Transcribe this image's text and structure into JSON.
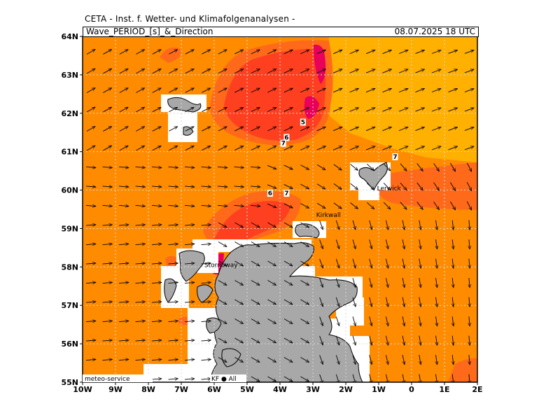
{
  "header": {
    "title": "CETA - Inst. f. Wetter- und Klimafolgenanalysen -",
    "subtitle": "Wave_PERIOD_[s]_&_Direction",
    "datetime": "08.07.2025  18 UTC"
  },
  "map": {
    "lon_range": [
      -10,
      2
    ],
    "lat_range": [
      55,
      64
    ],
    "x_ticks": [
      {
        "lon": -10,
        "label": "10W"
      },
      {
        "lon": -9,
        "label": "9W"
      },
      {
        "lon": -8,
        "label": "8W"
      },
      {
        "lon": -7,
        "label": "7W"
      },
      {
        "lon": -6,
        "label": "6W"
      },
      {
        "lon": -5,
        "label": "5W"
      },
      {
        "lon": -4,
        "label": "4W"
      },
      {
        "lon": -3,
        "label": "3W"
      },
      {
        "lon": -2,
        "label": "2W"
      },
      {
        "lon": -1,
        "label": "1W"
      },
      {
        "lon": 0,
        "label": "0"
      },
      {
        "lon": 1,
        "label": "1E"
      },
      {
        "lon": 2,
        "label": "2E"
      }
    ],
    "y_ticks": [
      {
        "lat": 64,
        "label": "64N"
      },
      {
        "lat": 63,
        "label": "63N"
      },
      {
        "lat": 62,
        "label": "62N"
      },
      {
        "lat": 61,
        "label": "61N"
      },
      {
        "lat": 60,
        "label": "60N"
      },
      {
        "lat": 59,
        "label": "59N"
      },
      {
        "lat": 58,
        "label": "58N"
      },
      {
        "lat": 57,
        "label": "57N"
      },
      {
        "lat": 56,
        "label": "56N"
      },
      {
        "lat": 55,
        "label": "55N"
      }
    ],
    "contour_labels": [
      {
        "lon": -3.3,
        "lat": 61.75,
        "text": "5"
      },
      {
        "lon": -3.8,
        "lat": 61.35,
        "text": "6"
      },
      {
        "lon": -3.9,
        "lat": 61.2,
        "text": "7"
      },
      {
        "lon": -0.5,
        "lat": 60.85,
        "text": "7"
      },
      {
        "lon": -4.3,
        "lat": 59.9,
        "text": "6"
      },
      {
        "lon": -3.8,
        "lat": 59.9,
        "text": "7"
      }
    ],
    "towns": [
      {
        "name": "Lerwick",
        "lon": -1.05,
        "lat": 60.05
      },
      {
        "name": "Kirkwall",
        "lon": -2.9,
        "lat": 59.35
      },
      {
        "name": "Stornoway",
        "lon": -6.3,
        "lat": 58.05
      }
    ],
    "footer_text": "meteo-service",
    "footer_right": "KF  ●  All",
    "colors": {
      "sea": "#ff8c00",
      "far_sea": "#ffb000",
      "band_mid": "#ff6a1a",
      "band_strong": "#ff4020",
      "band_peak": "#e8005a",
      "land": "#a8a8a8",
      "grid": "#d8d8d8"
    }
  }
}
